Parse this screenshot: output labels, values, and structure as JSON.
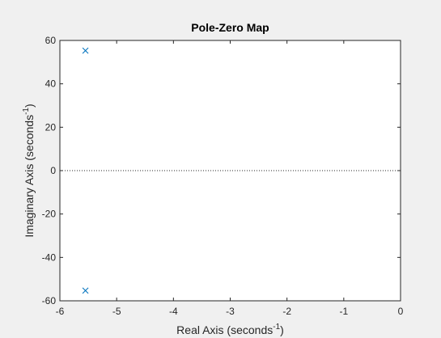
{
  "chart_data": {
    "type": "scatter",
    "title": "Pole-Zero Map",
    "xlabel": {
      "prefix": "Real Axis (seconds",
      "superscript": "-1",
      "suffix": ")"
    },
    "ylabel": {
      "prefix": "Imaginary Axis (seconds",
      "superscript": "-1",
      "suffix": ")"
    },
    "xlim": [
      -6,
      0
    ],
    "ylim": [
      -60,
      60
    ],
    "xticks": [
      -6,
      -5,
      -4,
      -3,
      -2,
      -1,
      0
    ],
    "yticks": [
      -60,
      -40,
      -20,
      0,
      20,
      40,
      60
    ],
    "grid": false,
    "zero_line": true,
    "series": [
      {
        "marker": "x",
        "color": "#0072BD",
        "points": [
          {
            "x": -5.55,
            "y": 55.3
          },
          {
            "x": -5.55,
            "y": -55.3
          }
        ]
      }
    ]
  },
  "colors": {
    "figure_bg": "#f0f0f0",
    "axes_bg": "#ffffff",
    "axis_line": "#262626",
    "marker": "#0072BD"
  }
}
